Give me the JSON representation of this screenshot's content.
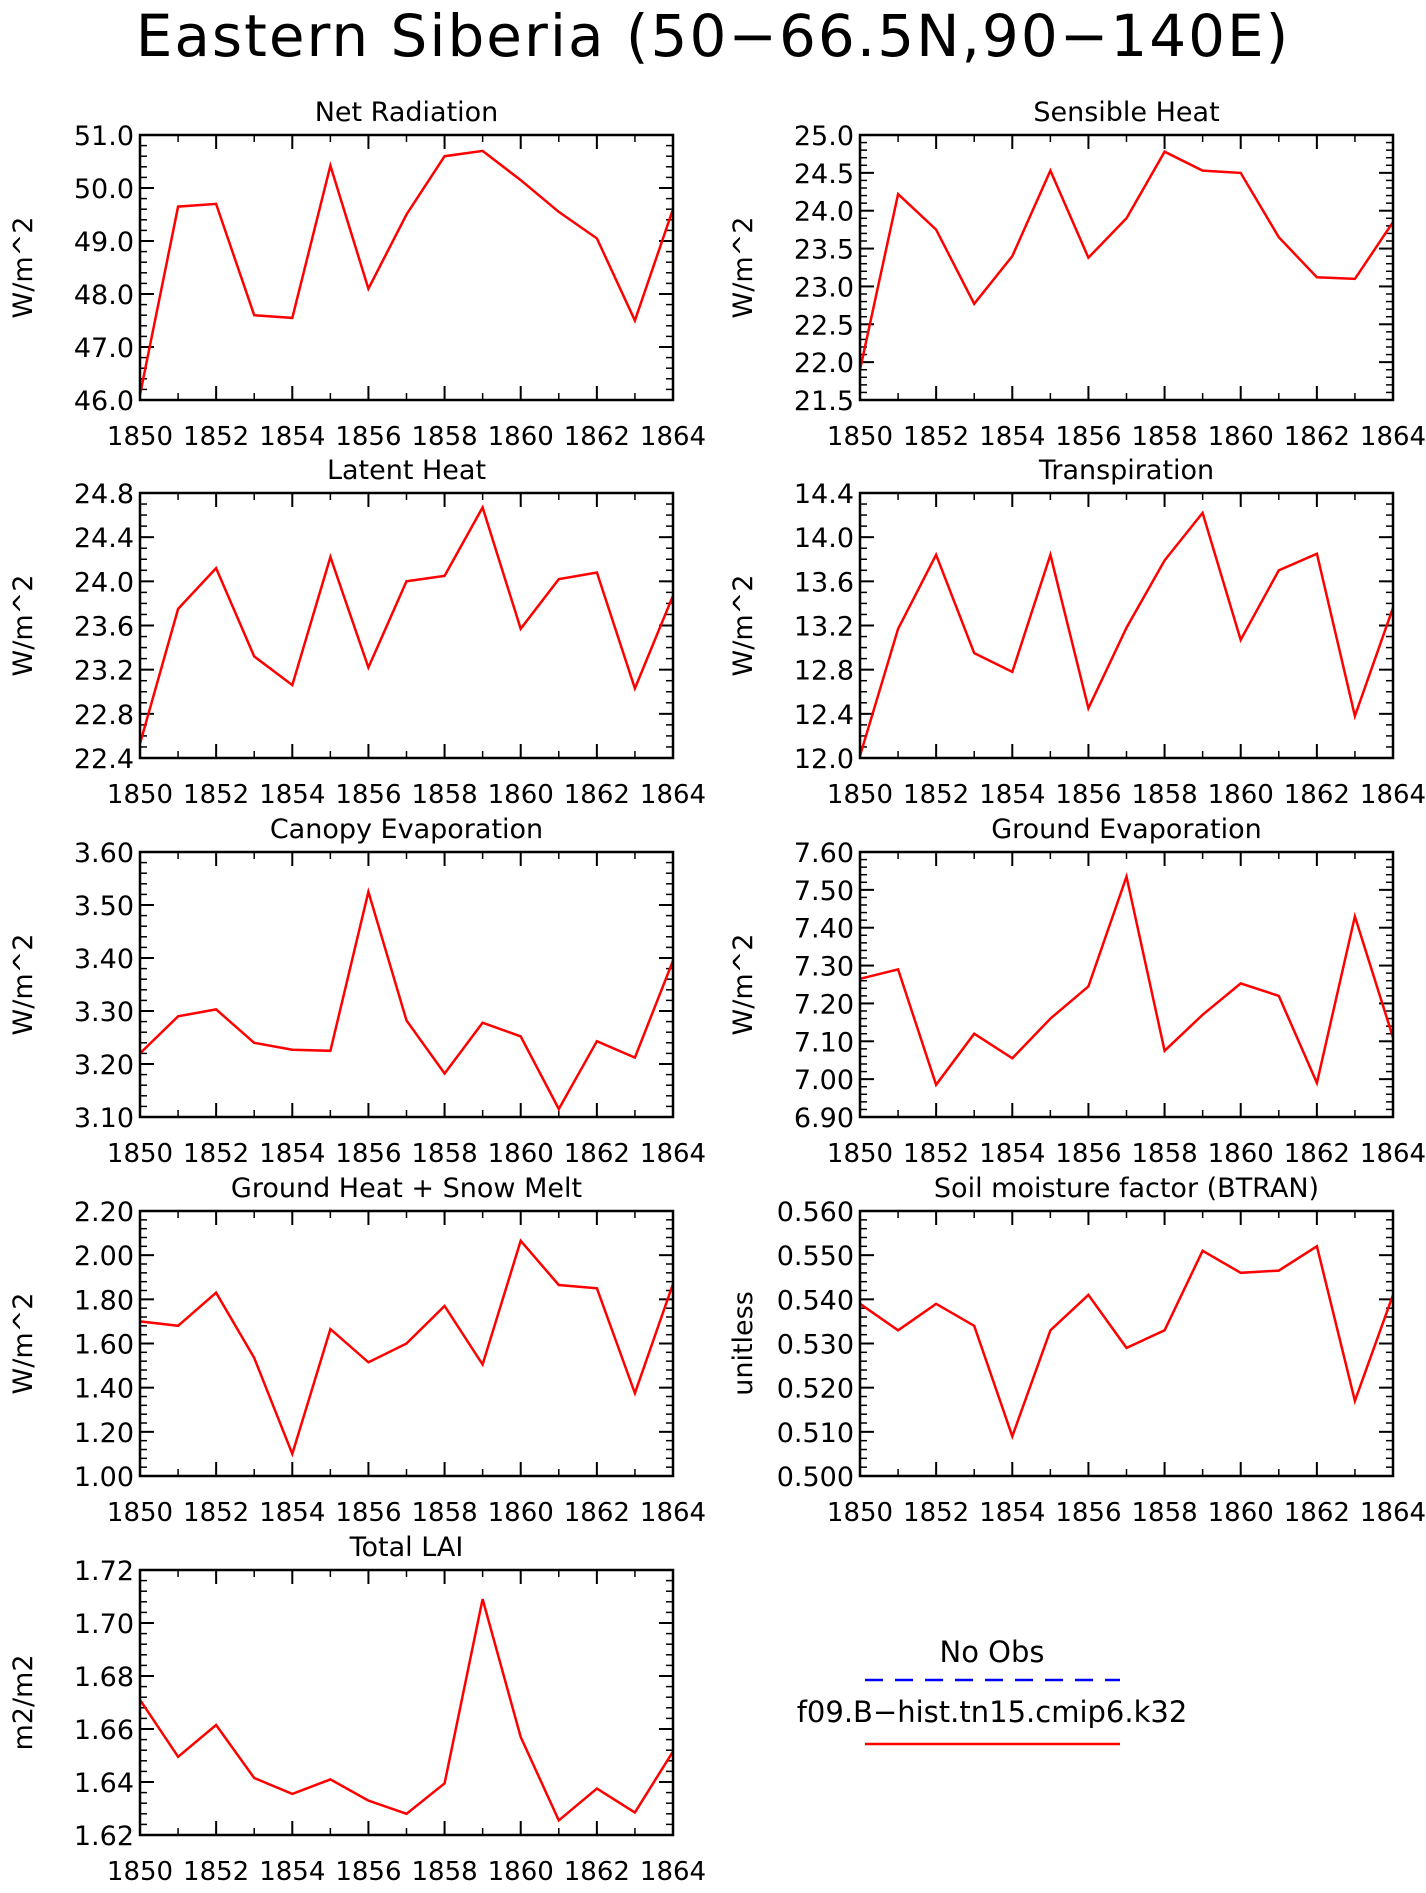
{
  "title": "Eastern Siberia (50−66.5N,90−140E)",
  "colors": {
    "model": "#ff0000",
    "obs": "#0000ff",
    "axis": "#000000"
  },
  "legend": {
    "obs_label": "No Obs",
    "model_label": "f09.B−hist.tn15.cmip6.k32"
  },
  "chart_data": [
    {
      "type": "line",
      "title": "Net Radiation",
      "ylabel": "W/m^2",
      "xlim": [
        1850,
        1864
      ],
      "ylim": [
        46.0,
        51.0
      ],
      "x_ticks": [
        "1850",
        "1852",
        "1854",
        "1856",
        "1858",
        "1860",
        "1862",
        "1864"
      ],
      "y_ticks": [
        "46.0",
        "47.0",
        "48.0",
        "49.0",
        "50.0",
        "51.0"
      ],
      "y_minor_step": 0.2,
      "x": [
        1850,
        1851,
        1852,
        1853,
        1854,
        1855,
        1856,
        1857,
        1858,
        1859,
        1860,
        1861,
        1862,
        1863,
        1864
      ],
      "series": [
        {
          "name": "f09.B−hist.tn15.cmip6.k32",
          "values": [
            46.1,
            49.65,
            49.7,
            47.6,
            47.55,
            50.42,
            48.1,
            49.5,
            50.6,
            50.7,
            50.15,
            49.55,
            49.05,
            47.5,
            49.6
          ]
        }
      ]
    },
    {
      "type": "line",
      "title": "Sensible Heat",
      "ylabel": "W/m^2",
      "xlim": [
        1850,
        1864
      ],
      "ylim": [
        21.5,
        25.0
      ],
      "x_ticks": [
        "1850",
        "1852",
        "1854",
        "1856",
        "1858",
        "1860",
        "1862",
        "1864"
      ],
      "y_ticks": [
        "21.5",
        "22.0",
        "22.5",
        "23.0",
        "23.5",
        "24.0",
        "24.5",
        "25.0"
      ],
      "y_minor_step": 0.1,
      "x": [
        1850,
        1851,
        1852,
        1853,
        1854,
        1855,
        1856,
        1857,
        1858,
        1859,
        1860,
        1861,
        1862,
        1863,
        1864
      ],
      "series": [
        {
          "name": "f09.B−hist.tn15.cmip6.k32",
          "values": [
            21.9,
            24.22,
            23.75,
            22.77,
            23.4,
            24.53,
            23.38,
            23.9,
            24.78,
            24.53,
            24.5,
            23.65,
            23.12,
            23.1,
            23.85
          ]
        }
      ]
    },
    {
      "type": "line",
      "title": "Latent Heat",
      "ylabel": "W/m^2",
      "xlim": [
        1850,
        1864
      ],
      "ylim": [
        22.4,
        24.8
      ],
      "x_ticks": [
        "1850",
        "1852",
        "1854",
        "1856",
        "1858",
        "1860",
        "1862",
        "1864"
      ],
      "y_ticks": [
        "22.4",
        "22.8",
        "23.2",
        "23.6",
        "24.0",
        "24.4",
        "24.8"
      ],
      "y_minor_step": 0.1,
      "x": [
        1850,
        1851,
        1852,
        1853,
        1854,
        1855,
        1856,
        1857,
        1858,
        1859,
        1860,
        1861,
        1862,
        1863,
        1864
      ],
      "series": [
        {
          "name": "f09.B−hist.tn15.cmip6.k32",
          "values": [
            22.53,
            23.75,
            24.12,
            23.32,
            23.06,
            24.22,
            23.22,
            24.0,
            24.05,
            24.67,
            23.57,
            24.02,
            24.08,
            23.03,
            23.87
          ]
        }
      ]
    },
    {
      "type": "line",
      "title": "Transpiration",
      "ylabel": "W/m^2",
      "xlim": [
        1850,
        1864
      ],
      "ylim": [
        12.0,
        14.4
      ],
      "x_ticks": [
        "1850",
        "1852",
        "1854",
        "1856",
        "1858",
        "1860",
        "1862",
        "1864"
      ],
      "y_ticks": [
        "12.0",
        "12.4",
        "12.8",
        "13.2",
        "13.6",
        "14.0",
        "14.4"
      ],
      "y_minor_step": 0.1,
      "x": [
        1850,
        1851,
        1852,
        1853,
        1854,
        1855,
        1856,
        1857,
        1858,
        1859,
        1860,
        1861,
        1862,
        1863,
        1864
      ],
      "series": [
        {
          "name": "f09.B−hist.tn15.cmip6.k32",
          "values": [
            12.02,
            13.17,
            13.84,
            12.95,
            12.78,
            13.84,
            12.45,
            13.18,
            13.79,
            14.22,
            13.07,
            13.7,
            13.85,
            12.38,
            13.36
          ]
        }
      ]
    },
    {
      "type": "line",
      "title": "Canopy Evaporation",
      "ylabel": "W/m^2",
      "xlim": [
        1850,
        1864
      ],
      "ylim": [
        3.1,
        3.6
      ],
      "x_ticks": [
        "1850",
        "1852",
        "1854",
        "1856",
        "1858",
        "1860",
        "1862",
        "1864"
      ],
      "y_ticks": [
        "3.10",
        "3.20",
        "3.30",
        "3.40",
        "3.50",
        "3.60"
      ],
      "y_minor_step": 0.02,
      "x": [
        1850,
        1851,
        1852,
        1853,
        1854,
        1855,
        1856,
        1857,
        1858,
        1859,
        1860,
        1861,
        1862,
        1863,
        1864
      ],
      "series": [
        {
          "name": "f09.B−hist.tn15.cmip6.k32",
          "values": [
            3.22,
            3.29,
            3.303,
            3.24,
            3.227,
            3.225,
            3.525,
            3.282,
            3.182,
            3.278,
            3.252,
            3.115,
            3.243,
            3.212,
            3.395
          ]
        }
      ]
    },
    {
      "type": "line",
      "title": "Ground Evaporation",
      "ylabel": "W/m^2",
      "xlim": [
        1850,
        1864
      ],
      "ylim": [
        6.9,
        7.6
      ],
      "x_ticks": [
        "1850",
        "1852",
        "1854",
        "1856",
        "1858",
        "1860",
        "1862",
        "1864"
      ],
      "y_ticks": [
        "6.90",
        "7.00",
        "7.10",
        "7.20",
        "7.30",
        "7.40",
        "7.50",
        "7.60"
      ],
      "y_minor_step": 0.02,
      "x": [
        1850,
        1851,
        1852,
        1853,
        1854,
        1855,
        1856,
        1857,
        1858,
        1859,
        1860,
        1861,
        1862,
        1863,
        1864
      ],
      "series": [
        {
          "name": "f09.B−hist.tn15.cmip6.k32",
          "values": [
            7.265,
            7.29,
            6.985,
            7.12,
            7.055,
            7.16,
            7.245,
            7.535,
            7.075,
            7.17,
            7.253,
            7.22,
            6.99,
            7.43,
            7.11
          ]
        }
      ]
    },
    {
      "type": "line",
      "title": "Ground Heat + Snow Melt",
      "ylabel": "W/m^2",
      "xlim": [
        1850,
        1864
      ],
      "ylim": [
        1.0,
        2.2
      ],
      "x_ticks": [
        "1850",
        "1852",
        "1854",
        "1856",
        "1858",
        "1860",
        "1862",
        "1864"
      ],
      "y_ticks": [
        "1.00",
        "1.20",
        "1.40",
        "1.60",
        "1.80",
        "2.00",
        "2.20"
      ],
      "y_minor_step": 0.04,
      "x": [
        1850,
        1851,
        1852,
        1853,
        1854,
        1855,
        1856,
        1857,
        1858,
        1859,
        1860,
        1861,
        1862,
        1863,
        1864
      ],
      "series": [
        {
          "name": "f09.B−hist.tn15.cmip6.k32",
          "values": [
            1.7,
            1.68,
            1.83,
            1.535,
            1.1,
            1.665,
            1.515,
            1.6,
            1.77,
            1.505,
            2.065,
            1.865,
            1.85,
            1.375,
            1.87
          ]
        }
      ]
    },
    {
      "type": "line",
      "title": "Soil moisture factor (BTRAN)",
      "ylabel": "unitless",
      "xlim": [
        1850,
        1864
      ],
      "ylim": [
        0.5,
        0.56
      ],
      "x_ticks": [
        "1850",
        "1852",
        "1854",
        "1856",
        "1858",
        "1860",
        "1862",
        "1864"
      ],
      "y_ticks": [
        "0.500",
        "0.510",
        "0.520",
        "0.530",
        "0.540",
        "0.550",
        "0.560"
      ],
      "y_minor_step": 0.002,
      "x": [
        1850,
        1851,
        1852,
        1853,
        1854,
        1855,
        1856,
        1857,
        1858,
        1859,
        1860,
        1861,
        1862,
        1863,
        1864
      ],
      "series": [
        {
          "name": "f09.B−hist.tn15.cmip6.k32",
          "values": [
            0.539,
            0.533,
            0.539,
            0.534,
            0.509,
            0.533,
            0.541,
            0.529,
            0.533,
            0.551,
            0.546,
            0.5465,
            0.552,
            0.517,
            0.541
          ]
        }
      ]
    },
    {
      "type": "line",
      "title": "Total LAI",
      "ylabel": "m2/m2",
      "xlim": [
        1850,
        1864
      ],
      "ylim": [
        1.62,
        1.72
      ],
      "x_ticks": [
        "1850",
        "1852",
        "1854",
        "1856",
        "1858",
        "1860",
        "1862",
        "1864"
      ],
      "y_ticks": [
        "1.62",
        "1.64",
        "1.66",
        "1.68",
        "1.70",
        "1.72"
      ],
      "y_minor_step": 0.004,
      "x": [
        1850,
        1851,
        1852,
        1853,
        1854,
        1855,
        1856,
        1857,
        1858,
        1859,
        1860,
        1861,
        1862,
        1863,
        1864
      ],
      "series": [
        {
          "name": "f09.B−hist.tn15.cmip6.k32",
          "values": [
            1.671,
            1.6495,
            1.6615,
            1.6415,
            1.6355,
            1.641,
            1.633,
            1.628,
            1.6395,
            1.709,
            1.657,
            1.6255,
            1.6375,
            1.6285,
            1.6515
          ]
        }
      ]
    }
  ]
}
